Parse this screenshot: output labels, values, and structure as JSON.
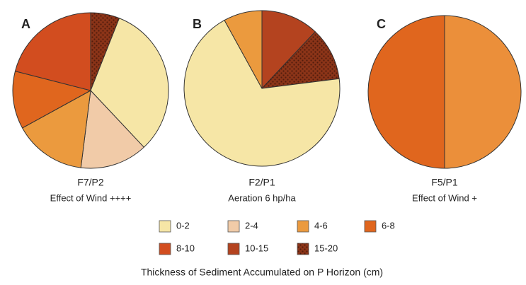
{
  "chart_data": [
    {
      "type": "pie",
      "label": "A",
      "title": "F7/P2",
      "subtitle": "Effect of Wind ++++",
      "values": [
        6,
        32,
        14,
        15,
        12,
        21
      ],
      "colors": [
        "#8b3418",
        "#f6e6a6",
        "#f1cba8",
        "#eb9a3e",
        "#e0661e",
        "#d24d1f"
      ]
    },
    {
      "type": "pie",
      "label": "B",
      "title": "F2/P1",
      "subtitle": "Aeration 6 hp/ha",
      "values": [
        12,
        11,
        69,
        8
      ],
      "colors": [
        "#b4431f",
        "#8b3418",
        "#f6e6a6",
        "#eb9a3e"
      ]
    },
    {
      "type": "pie",
      "label": "C",
      "title": "F5/P1",
      "subtitle": "Effect of Wind +",
      "values": [
        50,
        50
      ],
      "colors": [
        "#eb8f3a",
        "#e0661e"
      ]
    }
  ],
  "legend": {
    "title": "Thickness of Sediment Accumulated on P Horizon (cm)",
    "categories": [
      "0-2",
      "2-4",
      "4-6",
      "6-8",
      "8-10",
      "10-15",
      "15-20"
    ],
    "colors": [
      "#f6e6a6",
      "#f1cba8",
      "#eb9a3e",
      "#e0661e",
      "#d24d1f",
      "#b4431f",
      "#8b3418"
    ]
  },
  "dotted_color": "#8b3418"
}
